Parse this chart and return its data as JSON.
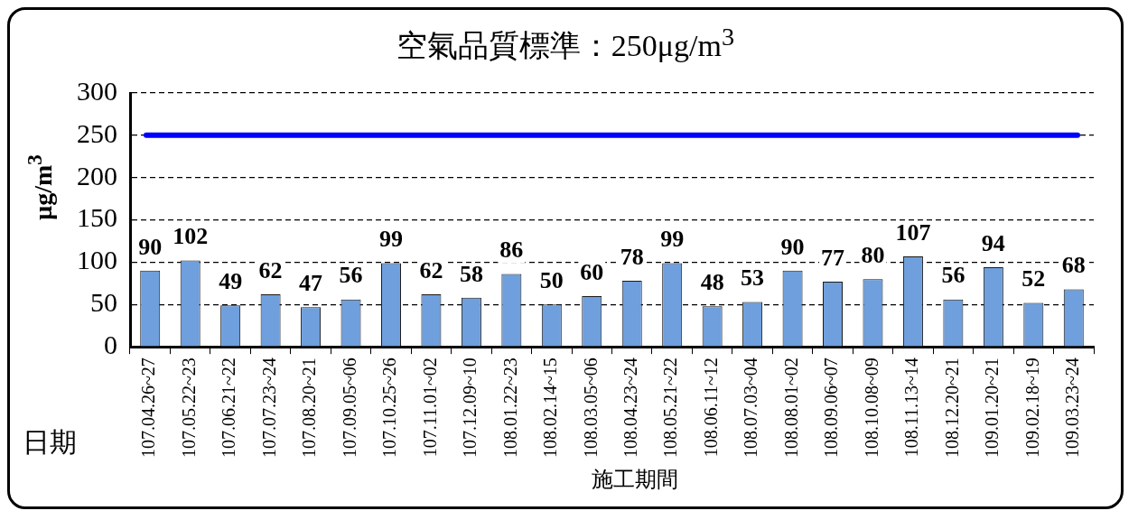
{
  "chart_data": {
    "type": "bar",
    "title": "空氣品質標準：250μg/m$^{3}$",
    "ylabel": "μg/m$^{3}$",
    "xlabel": "施工期間",
    "annotations": [
      "日期"
    ],
    "categories": [
      "107.04.26~27",
      "107.05.22~23",
      "107.06.21~22",
      "107.07.23~24",
      "107.08.20~21",
      "107.09.05~06",
      "107.10.25~26",
      "107.11.01~02",
      "107.12.09~10",
      "108.01.22~23",
      "108.02.14~15",
      "108.03.05~06",
      "108.04.23~24",
      "108.05.21~22",
      "108.06.11~12",
      "108.07.03~04",
      "108.08.01~02",
      "108.09.06~07",
      "108.10.08~09",
      "108.11.13~14",
      "108.12.20~21",
      "109.01.20~21",
      "109.02.18~19",
      "109.03.23~24"
    ],
    "values": [
      90,
      102,
      49,
      62,
      47,
      56,
      99,
      62,
      58,
      86,
      50,
      60,
      78,
      99,
      48,
      53,
      90,
      77,
      80,
      107,
      56,
      94,
      52,
      68
    ],
    "color": "#6f9fdc",
    "ylim": [
      0,
      300
    ],
    "yticks": [
      0,
      50,
      100,
      150,
      200,
      250,
      300
    ],
    "grid": "y",
    "data_labels": true,
    "ref_lines": [
      {
        "axis": "y",
        "value": 250,
        "color": "#0000ff"
      }
    ]
  }
}
